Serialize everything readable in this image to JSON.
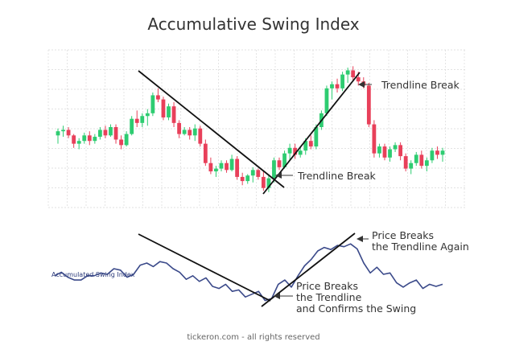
{
  "title": "Accumulative Swing Index",
  "footer": "tickeron.com - all rights reserved",
  "colors": {
    "up": "#2ecc71",
    "down": "#e8405a",
    "asi_line": "#3b4a8a",
    "trend": "#111111",
    "grid": "#d9d9d9"
  },
  "chart_data": [
    {
      "type": "candlestick",
      "title": "",
      "grid": true,
      "ylim": [
        0,
        100
      ],
      "candles": [
        {
          "o": 44,
          "h": 49,
          "l": 38,
          "c": 47
        },
        {
          "o": 47,
          "h": 51,
          "l": 43,
          "c": 48
        },
        {
          "o": 48,
          "h": 50,
          "l": 42,
          "c": 44
        },
        {
          "o": 44,
          "h": 45,
          "l": 35,
          "c": 38
        },
        {
          "o": 38,
          "h": 42,
          "l": 34,
          "c": 40
        },
        {
          "o": 40,
          "h": 46,
          "l": 38,
          "c": 44
        },
        {
          "o": 44,
          "h": 47,
          "l": 37,
          "c": 40
        },
        {
          "o": 40,
          "h": 45,
          "l": 38,
          "c": 43
        },
        {
          "o": 43,
          "h": 50,
          "l": 41,
          "c": 48
        },
        {
          "o": 48,
          "h": 51,
          "l": 42,
          "c": 44
        },
        {
          "o": 44,
          "h": 52,
          "l": 43,
          "c": 50
        },
        {
          "o": 50,
          "h": 52,
          "l": 38,
          "c": 41
        },
        {
          "o": 41,
          "h": 44,
          "l": 34,
          "c": 37
        },
        {
          "o": 37,
          "h": 47,
          "l": 36,
          "c": 45
        },
        {
          "o": 45,
          "h": 58,
          "l": 44,
          "c": 56
        },
        {
          "o": 56,
          "h": 62,
          "l": 50,
          "c": 53
        },
        {
          "o": 53,
          "h": 60,
          "l": 50,
          "c": 58
        },
        {
          "o": 58,
          "h": 63,
          "l": 51,
          "c": 60
        },
        {
          "o": 60,
          "h": 75,
          "l": 58,
          "c": 73
        },
        {
          "o": 73,
          "h": 78,
          "l": 68,
          "c": 70
        },
        {
          "o": 70,
          "h": 72,
          "l": 55,
          "c": 57
        },
        {
          "o": 57,
          "h": 67,
          "l": 55,
          "c": 65
        },
        {
          "o": 65,
          "h": 68,
          "l": 50,
          "c": 53
        },
        {
          "o": 53,
          "h": 55,
          "l": 42,
          "c": 45
        },
        {
          "o": 45,
          "h": 50,
          "l": 44,
          "c": 48
        },
        {
          "o": 48,
          "h": 50,
          "l": 41,
          "c": 44
        },
        {
          "o": 44,
          "h": 52,
          "l": 40,
          "c": 49
        },
        {
          "o": 49,
          "h": 51,
          "l": 36,
          "c": 38
        },
        {
          "o": 38,
          "h": 41,
          "l": 22,
          "c": 24
        },
        {
          "o": 24,
          "h": 28,
          "l": 16,
          "c": 18
        },
        {
          "o": 18,
          "h": 22,
          "l": 14,
          "c": 20
        },
        {
          "o": 20,
          "h": 26,
          "l": 18,
          "c": 24
        },
        {
          "o": 24,
          "h": 26,
          "l": 17,
          "c": 19
        },
        {
          "o": 19,
          "h": 30,
          "l": 18,
          "c": 27
        },
        {
          "o": 27,
          "h": 29,
          "l": 12,
          "c": 14
        },
        {
          "o": 14,
          "h": 17,
          "l": 8,
          "c": 11
        },
        {
          "o": 11,
          "h": 16,
          "l": 9,
          "c": 15
        },
        {
          "o": 15,
          "h": 21,
          "l": 10,
          "c": 19
        },
        {
          "o": 19,
          "h": 20,
          "l": 12,
          "c": 14
        },
        {
          "o": 14,
          "h": 18,
          "l": 4,
          "c": 6
        },
        {
          "o": 6,
          "h": 16,
          "l": 3,
          "c": 13
        },
        {
          "o": 13,
          "h": 28,
          "l": 10,
          "c": 26
        },
        {
          "o": 26,
          "h": 28,
          "l": 19,
          "c": 21
        },
        {
          "o": 21,
          "h": 33,
          "l": 20,
          "c": 31
        },
        {
          "o": 31,
          "h": 38,
          "l": 26,
          "c": 35
        },
        {
          "o": 35,
          "h": 38,
          "l": 27,
          "c": 30
        },
        {
          "o": 30,
          "h": 36,
          "l": 28,
          "c": 33
        },
        {
          "o": 33,
          "h": 42,
          "l": 30,
          "c": 40
        },
        {
          "o": 40,
          "h": 44,
          "l": 34,
          "c": 36
        },
        {
          "o": 36,
          "h": 52,
          "l": 34,
          "c": 50
        },
        {
          "o": 50,
          "h": 62,
          "l": 48,
          "c": 60
        },
        {
          "o": 60,
          "h": 80,
          "l": 58,
          "c": 78
        },
        {
          "o": 78,
          "h": 83,
          "l": 70,
          "c": 81
        },
        {
          "o": 81,
          "h": 85,
          "l": 75,
          "c": 78
        },
        {
          "o": 78,
          "h": 90,
          "l": 76,
          "c": 88
        },
        {
          "o": 88,
          "h": 93,
          "l": 82,
          "c": 91
        },
        {
          "o": 91,
          "h": 94,
          "l": 83,
          "c": 86
        },
        {
          "o": 86,
          "h": 90,
          "l": 80,
          "c": 83
        },
        {
          "o": 83,
          "h": 86,
          "l": 78,
          "c": 80
        },
        {
          "o": 80,
          "h": 82,
          "l": 50,
          "c": 52
        },
        {
          "o": 52,
          "h": 55,
          "l": 28,
          "c": 31
        },
        {
          "o": 31,
          "h": 38,
          "l": 28,
          "c": 36
        },
        {
          "o": 36,
          "h": 38,
          "l": 26,
          "c": 28
        },
        {
          "o": 28,
          "h": 36,
          "l": 25,
          "c": 34
        },
        {
          "o": 34,
          "h": 39,
          "l": 32,
          "c": 37
        },
        {
          "o": 37,
          "h": 39,
          "l": 26,
          "c": 29
        },
        {
          "o": 29,
          "h": 31,
          "l": 18,
          "c": 20
        },
        {
          "o": 20,
          "h": 26,
          "l": 16,
          "c": 24
        },
        {
          "o": 24,
          "h": 32,
          "l": 22,
          "c": 30
        },
        {
          "o": 30,
          "h": 33,
          "l": 20,
          "c": 22
        },
        {
          "o": 22,
          "h": 28,
          "l": 18,
          "c": 26
        },
        {
          "o": 26,
          "h": 35,
          "l": 24,
          "c": 33
        },
        {
          "o": 33,
          "h": 36,
          "l": 27,
          "c": 30
        },
        {
          "o": 30,
          "h": 35,
          "l": 25,
          "c": 33
        }
      ]
    },
    {
      "type": "line",
      "series": [
        {
          "name": "Accumulated Swing Index",
          "values": [
            40,
            45,
            38,
            34,
            34,
            40,
            40,
            44,
            42,
            50,
            48,
            38,
            42,
            55,
            58,
            53,
            60,
            58,
            50,
            45,
            35,
            40,
            32,
            37,
            25,
            22,
            28,
            18,
            20,
            10,
            14,
            18,
            5,
            8,
            28,
            34,
            24,
            40,
            54,
            63,
            75,
            80,
            77,
            83,
            81,
            85,
            78,
            58,
            44,
            52,
            42,
            44,
            30,
            24,
            30,
            34,
            22,
            28,
            25,
            28
          ]
        }
      ],
      "ylim": [
        0,
        100
      ]
    }
  ],
  "annotations": {
    "trendline_break_top": "Trendline Break",
    "trendline_break_mid": "Trendline Break",
    "asi_label": "Accumulated Swing Index",
    "price_breaks_again_1": "Price Breaks",
    "price_breaks_again_2": "the Trendline Again",
    "price_breaks_confirm_1": "Price Breaks",
    "price_breaks_confirm_2": "the Trendline",
    "price_breaks_confirm_3": "and Confirms the Swing"
  }
}
